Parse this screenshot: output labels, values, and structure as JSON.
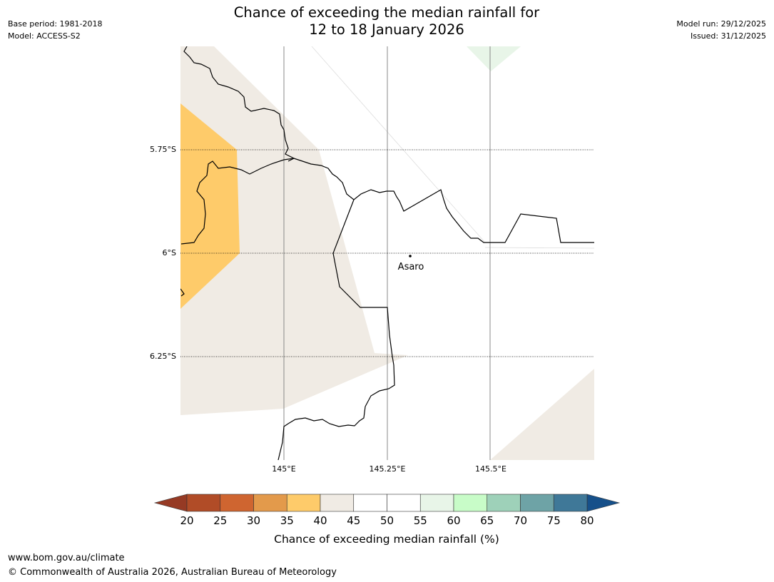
{
  "header": {
    "title_line1": "Chance of exceeding the median rainfall for",
    "title_line2": "12 to 18 January 2026",
    "base_period": "Base period: 1981-2018",
    "model": "Model: ACCESS-S2",
    "model_run": "Model run: 29/12/2025",
    "issued": "Issued: 31/12/2025"
  },
  "map": {
    "latitude_labels": [
      "5.75°S",
      "6°S",
      "6.25°S"
    ],
    "longitude_labels": [
      "145°E",
      "145.25°E",
      "145.5°E"
    ],
    "place": "Asaro"
  },
  "legend": {
    "ticks": [
      "20",
      "25",
      "30",
      "35",
      "40",
      "45",
      "50",
      "55",
      "60",
      "65",
      "70",
      "75",
      "80"
    ],
    "label": "Chance of exceeding median rainfall (%)",
    "colors": {
      "below_20": "#963a24",
      "20-25": "#b14c27",
      "25-30": "#cf6530",
      "30-35": "#e39a4b",
      "35-40": "#fecb6a",
      "40-45": "#f0ebe4",
      "45-50": "#ffffff",
      "50-55": "#ffffff",
      "55-60": "#e8f5e8",
      "60-65": "#c8fcc8",
      "65-70": "#9ed1b9",
      "70-75": "#6ea3a6",
      "75-80": "#3f7898",
      "above_80": "#16508a"
    }
  },
  "footer": {
    "url": "www.bom.gov.au/climate",
    "copyright": "© Commonwealth of Australia 2026, Australian Bureau of Meteorology"
  }
}
